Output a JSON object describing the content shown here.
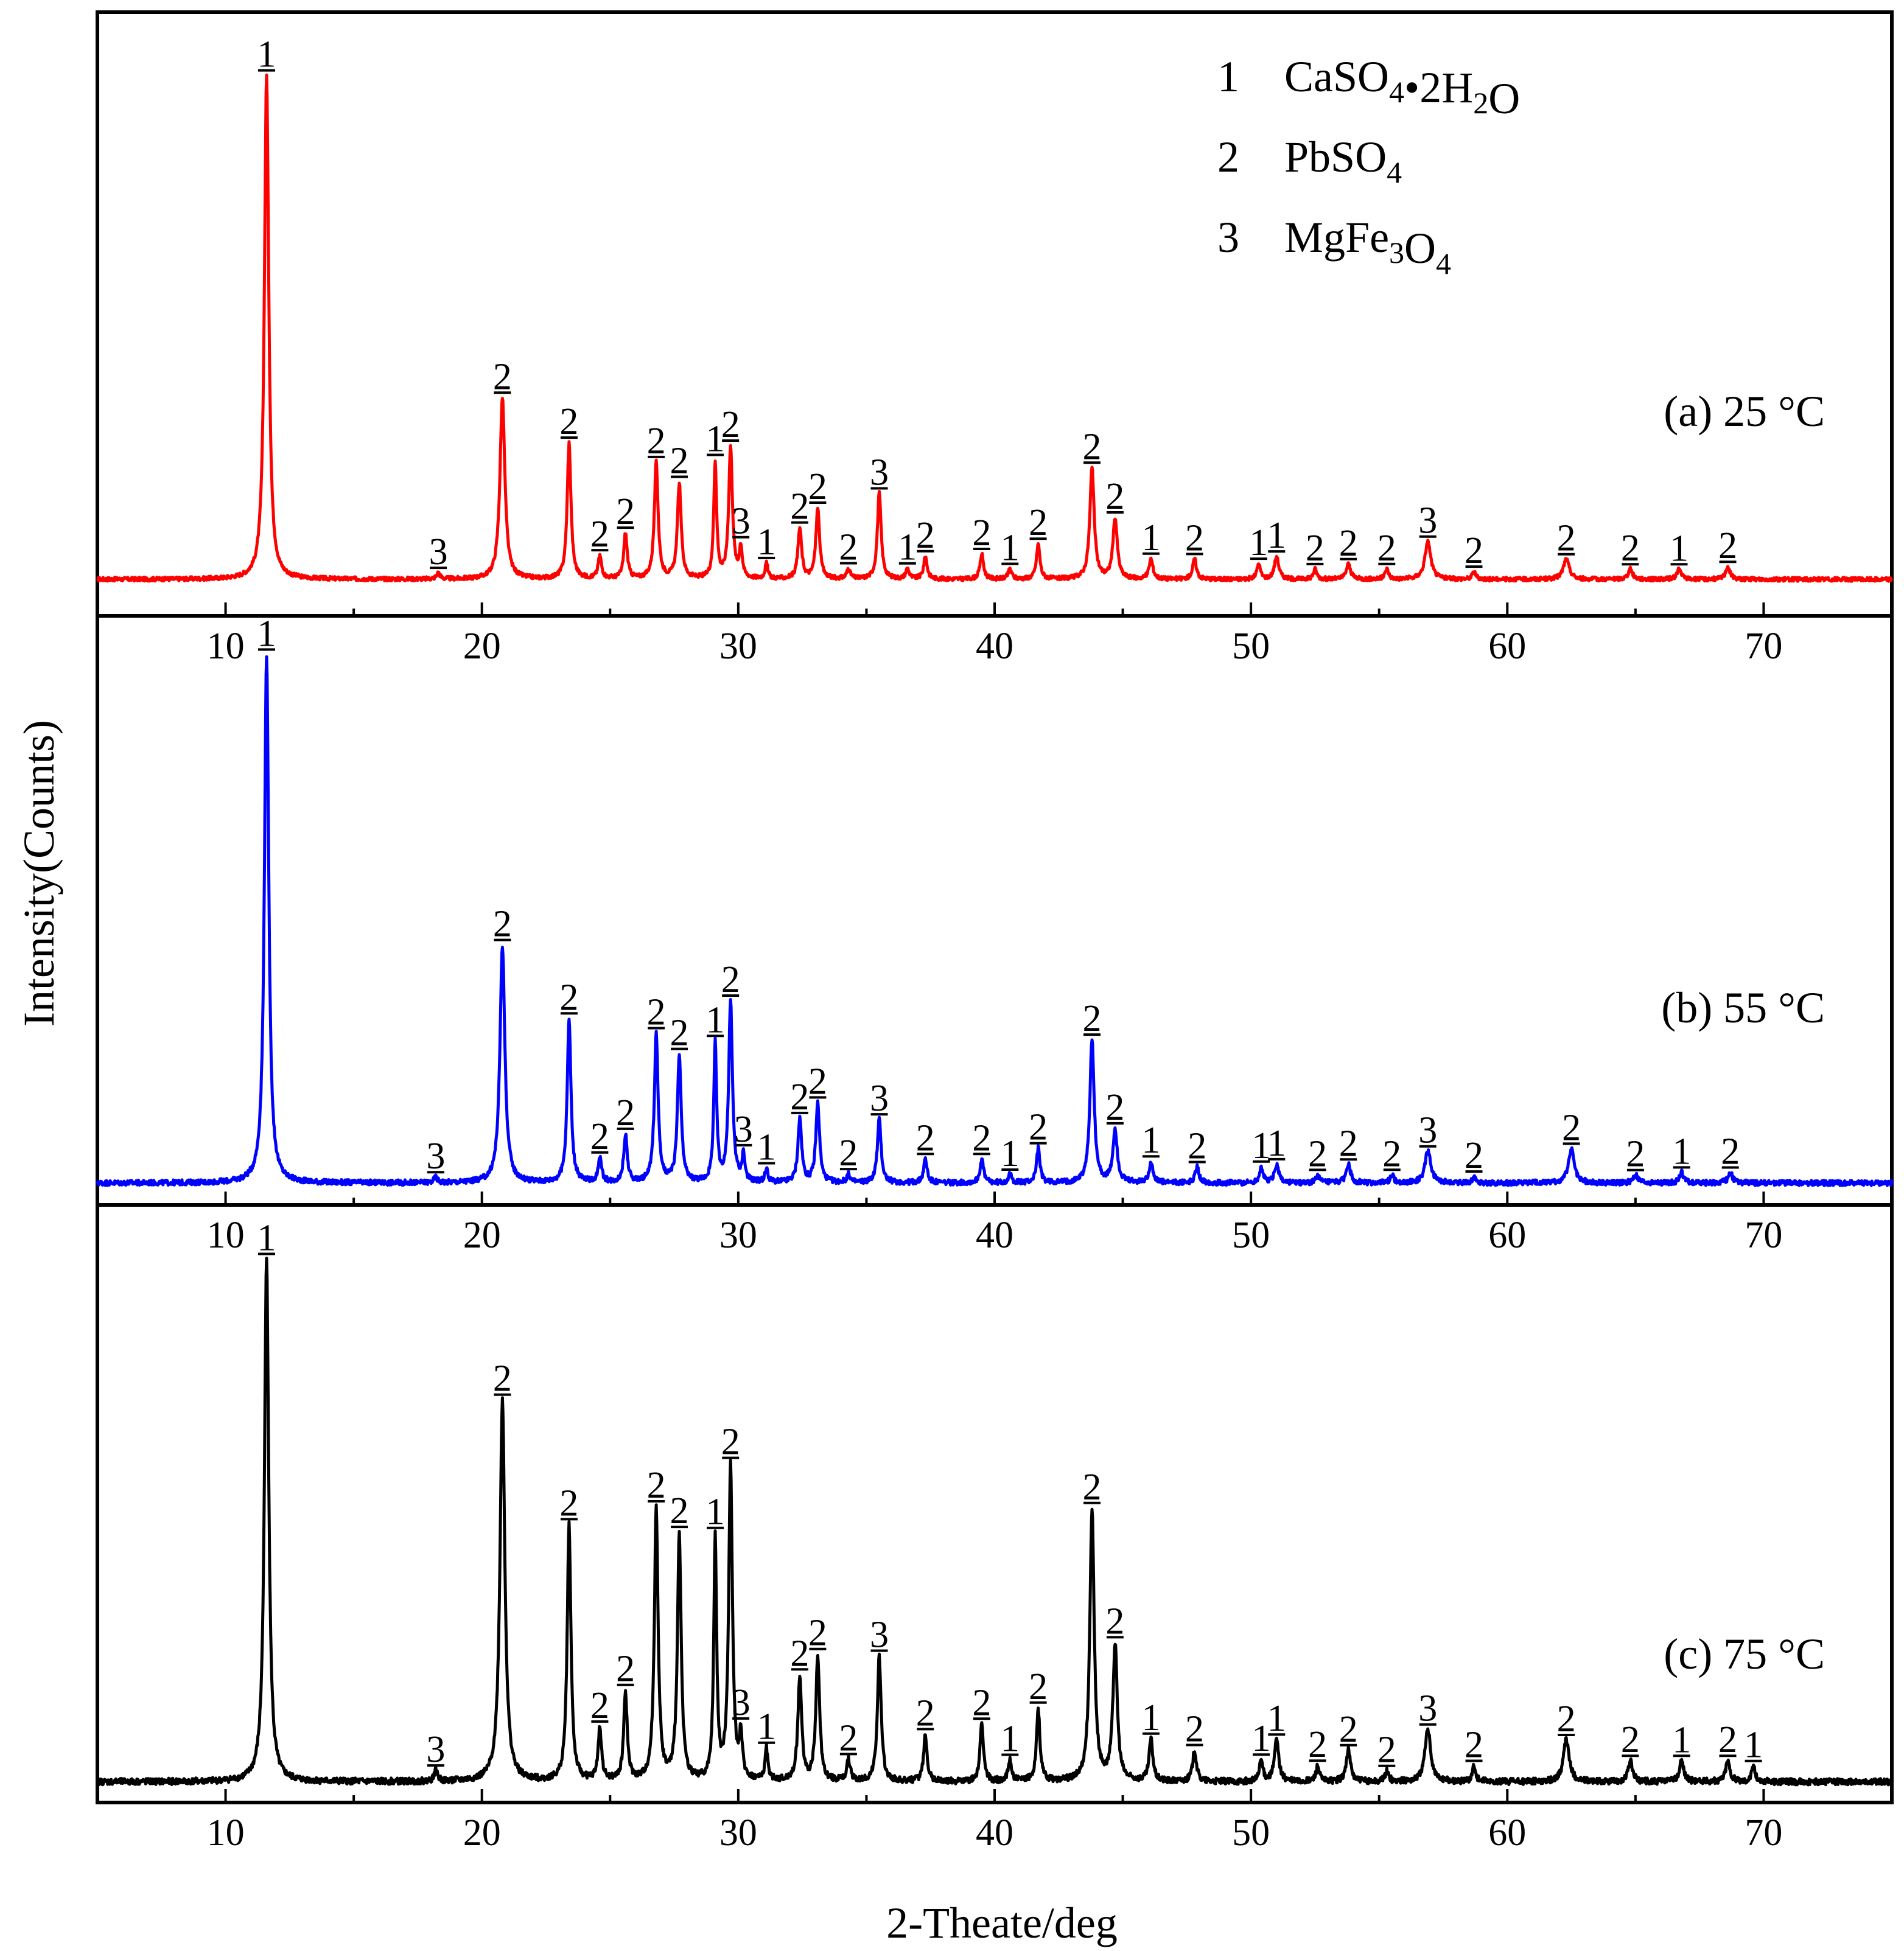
{
  "chart_data": {
    "type": "line",
    "xlabel": "2-Theate/deg",
    "ylabel": "Intensity(Counts)",
    "xlim": [
      5,
      75
    ],
    "xticks": [
      10,
      20,
      30,
      40,
      50,
      60,
      70
    ],
    "legend": {
      "placement": "top-right",
      "entries": [
        {
          "id": "1",
          "name": "CaSO",
          "sub1": "4",
          "mid": "•2H",
          "sub2": "2",
          "tail": "O"
        },
        {
          "id": "2",
          "name": "PbSO",
          "sub1": "4",
          "mid": "",
          "sub2": "",
          "tail": ""
        },
        {
          "id": "3",
          "name": "MgFe",
          "sub1": "3",
          "mid": "O",
          "sub2": "4",
          "tail": ""
        }
      ]
    },
    "panels": [
      {
        "label": "(a) 25 °C",
        "color": "#ff0000",
        "ylim": [
          0,
          1.08
        ],
        "noise": 0.004,
        "peaks": [
          [
            11.6,
            1.0,
            0.15,
            "1"
          ],
          [
            18.3,
            0.012,
            0.12,
            "3"
          ],
          [
            20.8,
            0.36,
            0.17,
            "2"
          ],
          [
            23.4,
            0.27,
            0.13,
            "2"
          ],
          [
            24.6,
            0.045,
            0.12,
            "2"
          ],
          [
            25.6,
            0.09,
            0.12,
            "2"
          ],
          [
            26.8,
            0.23,
            0.13,
            "2"
          ],
          [
            27.7,
            0.19,
            0.13,
            "2"
          ],
          [
            29.1,
            0.23,
            0.1,
            "1"
          ],
          [
            29.7,
            0.26,
            0.13,
            "2"
          ],
          [
            30.1,
            0.06,
            0.1,
            "3"
          ],
          [
            31.1,
            0.03,
            0.1,
            "1"
          ],
          [
            32.4,
            0.1,
            0.13,
            "2"
          ],
          [
            33.1,
            0.14,
            0.13,
            "2"
          ],
          [
            34.3,
            0.02,
            0.12,
            "2"
          ],
          [
            35.5,
            0.17,
            0.13,
            "3"
          ],
          [
            36.6,
            0.02,
            0.12,
            "1"
          ],
          [
            37.3,
            0.045,
            0.12,
            "2"
          ],
          [
            39.5,
            0.05,
            0.12,
            "2"
          ],
          [
            40.6,
            0.02,
            0.12,
            "1"
          ],
          [
            41.7,
            0.07,
            0.12,
            "2"
          ],
          [
            43.8,
            0.22,
            0.15,
            "2"
          ],
          [
            44.7,
            0.12,
            0.15,
            "2"
          ],
          [
            46.1,
            0.04,
            0.13,
            "1"
          ],
          [
            47.8,
            0.04,
            0.13,
            "2"
          ],
          [
            50.3,
            0.03,
            0.12,
            "1"
          ],
          [
            51.0,
            0.045,
            0.15,
            "1"
          ],
          [
            52.5,
            0.02,
            0.12,
            "2"
          ],
          [
            53.8,
            0.03,
            0.15,
            "2"
          ],
          [
            55.3,
            0.02,
            0.12,
            "2"
          ],
          [
            56.9,
            0.075,
            0.2,
            "3"
          ],
          [
            58.7,
            0.015,
            0.12,
            "2"
          ],
          [
            62.3,
            0.04,
            0.2,
            "2"
          ],
          [
            64.8,
            0.02,
            0.15,
            "2"
          ],
          [
            66.7,
            0.02,
            0.15,
            "1"
          ],
          [
            68.6,
            0.025,
            0.15,
            "2"
          ]
        ]
      },
      {
        "label": "(b) 55 °C",
        "color": "#0000ff",
        "ylim": [
          0,
          1.03
        ],
        "noise": 0.005,
        "peaks": [
          [
            11.6,
            1.0,
            0.15,
            "1"
          ],
          [
            18.2,
            0.01,
            0.12,
            "3"
          ],
          [
            20.8,
            0.45,
            0.17,
            "2"
          ],
          [
            23.4,
            0.31,
            0.13,
            "2"
          ],
          [
            24.6,
            0.045,
            0.12,
            "2"
          ],
          [
            25.6,
            0.09,
            0.12,
            "2"
          ],
          [
            26.8,
            0.28,
            0.13,
            "2"
          ],
          [
            27.7,
            0.24,
            0.13,
            "2"
          ],
          [
            29.1,
            0.26,
            0.1,
            "1"
          ],
          [
            29.7,
            0.34,
            0.13,
            "2"
          ],
          [
            30.2,
            0.05,
            0.1,
            "3"
          ],
          [
            31.1,
            0.025,
            0.1,
            "1"
          ],
          [
            32.4,
            0.12,
            0.13,
            "2"
          ],
          [
            33.1,
            0.15,
            0.13,
            "2"
          ],
          [
            34.3,
            0.015,
            0.12,
            "2"
          ],
          [
            35.5,
            0.12,
            0.13,
            "3"
          ],
          [
            37.3,
            0.045,
            0.12,
            "2"
          ],
          [
            39.5,
            0.045,
            0.12,
            "2"
          ],
          [
            40.6,
            0.015,
            0.12,
            "1"
          ],
          [
            41.7,
            0.065,
            0.12,
            "2"
          ],
          [
            43.8,
            0.27,
            0.15,
            "2"
          ],
          [
            44.7,
            0.1,
            0.15,
            "2"
          ],
          [
            46.1,
            0.04,
            0.13,
            "1"
          ],
          [
            47.9,
            0.03,
            0.13,
            "2"
          ],
          [
            50.4,
            0.03,
            0.12,
            "1"
          ],
          [
            51.0,
            0.035,
            0.15,
            "1"
          ],
          [
            52.6,
            0.015,
            0.12,
            "2"
          ],
          [
            53.8,
            0.035,
            0.15,
            "2"
          ],
          [
            55.5,
            0.015,
            0.12,
            "2"
          ],
          [
            56.9,
            0.06,
            0.2,
            "3"
          ],
          [
            58.7,
            0.012,
            0.12,
            "2"
          ],
          [
            62.5,
            0.065,
            0.2,
            "2"
          ],
          [
            65.0,
            0.015,
            0.15,
            "2"
          ],
          [
            66.8,
            0.02,
            0.15,
            "1"
          ],
          [
            68.7,
            0.02,
            0.15,
            "2"
          ]
        ]
      },
      {
        "label": "(c) 75 °C",
        "color": "#000000",
        "ylim": [
          0,
          1.06
        ],
        "noise": 0.006,
        "peaks": [
          [
            11.6,
            1.0,
            0.15,
            "1"
          ],
          [
            18.2,
            0.02,
            0.12,
            "3"
          ],
          [
            20.8,
            0.73,
            0.17,
            "2"
          ],
          [
            23.4,
            0.49,
            0.13,
            "2"
          ],
          [
            24.6,
            0.1,
            0.12,
            "2"
          ],
          [
            25.6,
            0.17,
            0.12,
            "2"
          ],
          [
            26.8,
            0.52,
            0.13,
            "2"
          ],
          [
            27.7,
            0.47,
            0.13,
            "2"
          ],
          [
            29.1,
            0.46,
            0.1,
            "1"
          ],
          [
            29.7,
            0.6,
            0.13,
            "2"
          ],
          [
            30.1,
            0.08,
            0.1,
            "3"
          ],
          [
            31.1,
            0.06,
            0.1,
            "1"
          ],
          [
            32.4,
            0.2,
            0.13,
            "2"
          ],
          [
            33.1,
            0.24,
            0.13,
            "2"
          ],
          [
            34.3,
            0.04,
            0.12,
            "2"
          ],
          [
            35.5,
            0.24,
            0.13,
            "3"
          ],
          [
            37.3,
            0.09,
            0.12,
            "2"
          ],
          [
            39.5,
            0.11,
            0.12,
            "2"
          ],
          [
            40.6,
            0.04,
            0.12,
            "1"
          ],
          [
            41.7,
            0.14,
            0.12,
            "2"
          ],
          [
            43.8,
            0.52,
            0.15,
            "2"
          ],
          [
            44.7,
            0.26,
            0.15,
            "2"
          ],
          [
            46.1,
            0.08,
            0.13,
            "1"
          ],
          [
            47.8,
            0.06,
            0.13,
            "2"
          ],
          [
            50.4,
            0.04,
            0.12,
            "1"
          ],
          [
            51.0,
            0.08,
            0.15,
            "1"
          ],
          [
            52.6,
            0.03,
            0.12,
            "2"
          ],
          [
            53.8,
            0.06,
            0.15,
            "2"
          ],
          [
            55.3,
            0.02,
            0.12,
            "2"
          ],
          [
            56.9,
            0.1,
            0.2,
            "3"
          ],
          [
            58.7,
            0.03,
            0.12,
            "2"
          ],
          [
            62.3,
            0.08,
            0.2,
            "2"
          ],
          [
            64.8,
            0.04,
            0.15,
            "2"
          ],
          [
            66.8,
            0.04,
            0.15,
            "1"
          ],
          [
            68.6,
            0.04,
            0.15,
            "2"
          ],
          [
            69.6,
            0.03,
            0.12,
            "1"
          ]
        ]
      }
    ]
  }
}
